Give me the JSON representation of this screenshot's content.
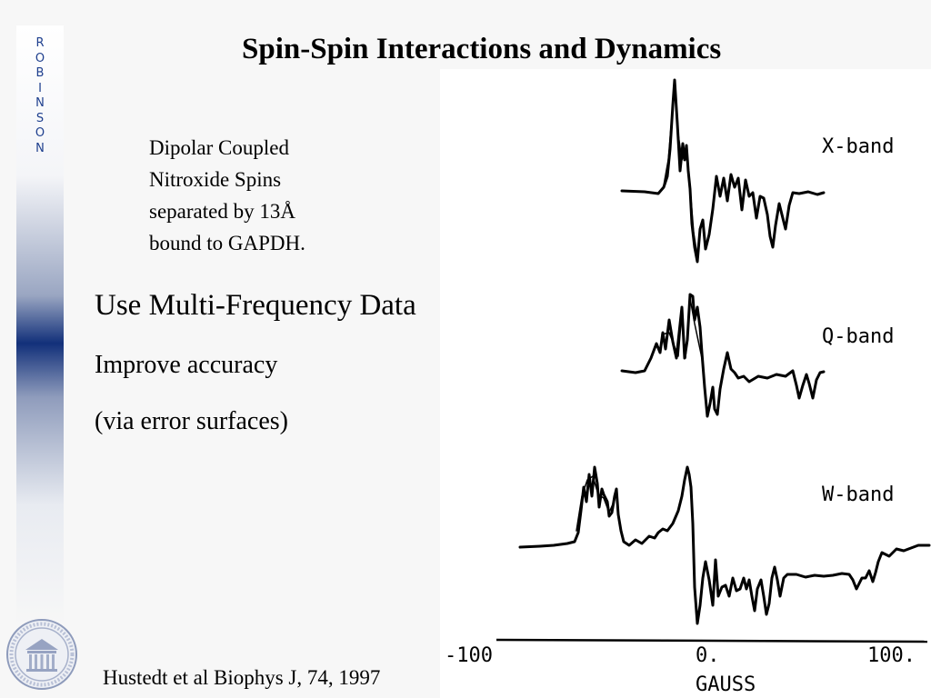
{
  "sidebar": {
    "letters": [
      "R",
      "O",
      "B",
      "I",
      "N",
      "S",
      "O",
      "N"
    ],
    "accent_color": "#12307a",
    "logo_icon": "university-seal-icon"
  },
  "slide": {
    "title": "Spin-Spin Interactions and Dynamics",
    "caption_lines": [
      "Dipolar Coupled",
      "Nitroxide Spins",
      "separated by 13Å",
      "bound to GAPDH."
    ],
    "heading": "Use Multi-Frequency Data",
    "bullets": [
      "Improve accuracy",
      "(via error surfaces)"
    ],
    "citation": "Hustedt et al Biophys J, 74, 1997"
  },
  "figure": {
    "trace_labels": [
      "X-band",
      "Q-band",
      "W-band"
    ],
    "axis": {
      "tick_labels": [
        "-100",
        "0.",
        "100."
      ],
      "label": "GAUSS"
    }
  }
}
